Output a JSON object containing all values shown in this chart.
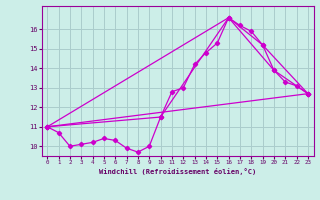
{
  "xlabel": "Windchill (Refroidissement éolien,°C)",
  "bg_color": "#cceee8",
  "grid_color": "#aacccc",
  "line_color": "#cc00cc",
  "xlim": [
    -0.5,
    23.5
  ],
  "ylim": [
    9.5,
    17.2
  ],
  "xticks": [
    0,
    1,
    2,
    3,
    4,
    5,
    6,
    7,
    8,
    9,
    10,
    11,
    12,
    13,
    14,
    15,
    16,
    17,
    18,
    19,
    20,
    21,
    22,
    23
  ],
  "yticks": [
    10,
    11,
    12,
    13,
    14,
    15,
    16
  ],
  "series1": [
    [
      0,
      11.0
    ],
    [
      1,
      10.7
    ],
    [
      2,
      10.0
    ],
    [
      3,
      10.1
    ],
    [
      4,
      10.2
    ],
    [
      5,
      10.4
    ],
    [
      6,
      10.3
    ],
    [
      7,
      9.9
    ],
    [
      8,
      9.7
    ],
    [
      9,
      10.0
    ],
    [
      10,
      11.5
    ],
    [
      11,
      12.8
    ],
    [
      12,
      13.0
    ],
    [
      13,
      14.2
    ],
    [
      14,
      14.8
    ],
    [
      15,
      15.3
    ],
    [
      16,
      16.6
    ],
    [
      17,
      16.2
    ],
    [
      18,
      15.9
    ],
    [
      19,
      15.2
    ],
    [
      20,
      13.9
    ],
    [
      21,
      13.3
    ],
    [
      22,
      13.1
    ],
    [
      23,
      12.7
    ]
  ],
  "series2": [
    [
      0,
      11.0
    ],
    [
      16,
      16.6
    ],
    [
      19,
      15.2
    ],
    [
      23,
      12.7
    ]
  ],
  "series3": [
    [
      0,
      11.0
    ],
    [
      23,
      12.7
    ]
  ],
  "series4": [
    [
      0,
      11.0
    ],
    [
      10,
      11.5
    ],
    [
      16,
      16.6
    ],
    [
      20,
      13.9
    ],
    [
      23,
      12.7
    ]
  ]
}
